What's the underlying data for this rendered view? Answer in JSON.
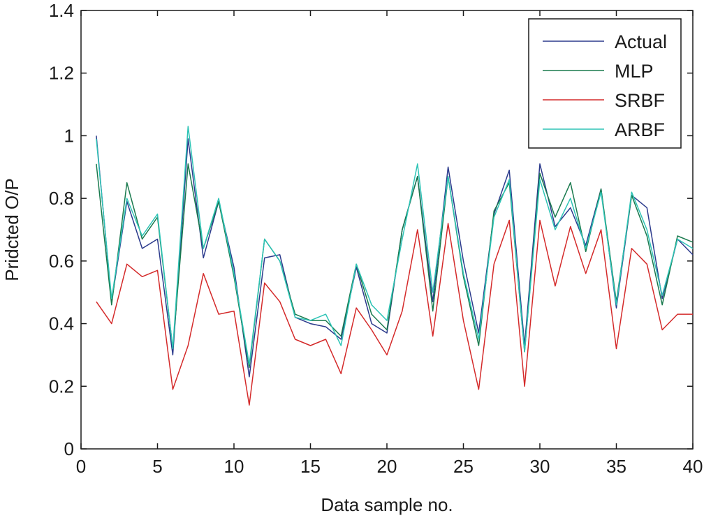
{
  "chart_data": {
    "type": "line",
    "xlabel": "Data sample no.",
    "ylabel": "Pridcted O/P",
    "xlim": [
      0,
      40
    ],
    "ylim": [
      0,
      1.4
    ],
    "xticks": [
      0,
      5,
      10,
      15,
      20,
      25,
      30,
      35,
      40
    ],
    "yticks": [
      0,
      0.2,
      0.4,
      0.6,
      0.8,
      1,
      1.2,
      1.4
    ],
    "ytick_labels": [
      "0",
      "0.2",
      "0.4",
      "0.6",
      "0.8",
      "1",
      "1.2",
      "1.4"
    ],
    "grid": false,
    "legend_position": "top-right",
    "x": [
      1,
      2,
      3,
      4,
      5,
      6,
      7,
      8,
      9,
      10,
      11,
      12,
      13,
      14,
      15,
      16,
      17,
      18,
      19,
      20,
      21,
      22,
      23,
      24,
      25,
      26,
      27,
      28,
      29,
      30,
      31,
      32,
      33,
      34,
      35,
      36,
      37,
      38,
      39,
      40
    ],
    "series": [
      {
        "name": "Actual",
        "color": "#2b3a8c",
        "values": [
          1.0,
          0.47,
          0.79,
          0.64,
          0.67,
          0.3,
          0.99,
          0.61,
          0.79,
          0.58,
          0.23,
          0.61,
          0.62,
          0.42,
          0.4,
          0.39,
          0.35,
          0.58,
          0.4,
          0.37,
          0.7,
          0.87,
          0.47,
          0.9,
          0.6,
          0.37,
          0.75,
          0.89,
          0.33,
          0.91,
          0.71,
          0.77,
          0.65,
          0.83,
          0.45,
          0.81,
          0.77,
          0.48,
          0.67,
          0.62
        ]
      },
      {
        "name": "MLP",
        "color": "#1a7a4e",
        "values": [
          0.91,
          0.46,
          0.85,
          0.67,
          0.74,
          0.32,
          0.91,
          0.64,
          0.79,
          0.55,
          0.26,
          0.67,
          0.6,
          0.43,
          0.41,
          0.41,
          0.36,
          0.59,
          0.43,
          0.38,
          0.7,
          0.87,
          0.44,
          0.87,
          0.55,
          0.33,
          0.76,
          0.85,
          0.31,
          0.88,
          0.74,
          0.85,
          0.63,
          0.83,
          0.47,
          0.81,
          0.68,
          0.46,
          0.68,
          0.66
        ]
      },
      {
        "name": "SRBF",
        "color": "#d42a2a",
        "values": [
          0.47,
          0.4,
          0.59,
          0.55,
          0.57,
          0.19,
          0.33,
          0.56,
          0.43,
          0.44,
          0.14,
          0.53,
          0.47,
          0.35,
          0.33,
          0.35,
          0.24,
          0.45,
          0.38,
          0.3,
          0.44,
          0.7,
          0.36,
          0.72,
          0.41,
          0.19,
          0.59,
          0.73,
          0.2,
          0.73,
          0.52,
          0.71,
          0.56,
          0.7,
          0.32,
          0.64,
          0.59,
          0.38,
          0.43,
          0.43
        ]
      },
      {
        "name": "ARBF",
        "color": "#2ec4b6",
        "values": [
          0.99,
          0.48,
          0.8,
          0.68,
          0.75,
          0.32,
          1.03,
          0.64,
          0.8,
          0.56,
          0.27,
          0.67,
          0.6,
          0.42,
          0.41,
          0.43,
          0.33,
          0.59,
          0.46,
          0.41,
          0.67,
          0.91,
          0.5,
          0.87,
          0.56,
          0.35,
          0.74,
          0.86,
          0.31,
          0.86,
          0.7,
          0.8,
          0.64,
          0.82,
          0.46,
          0.82,
          0.7,
          0.49,
          0.67,
          0.64
        ]
      }
    ]
  }
}
